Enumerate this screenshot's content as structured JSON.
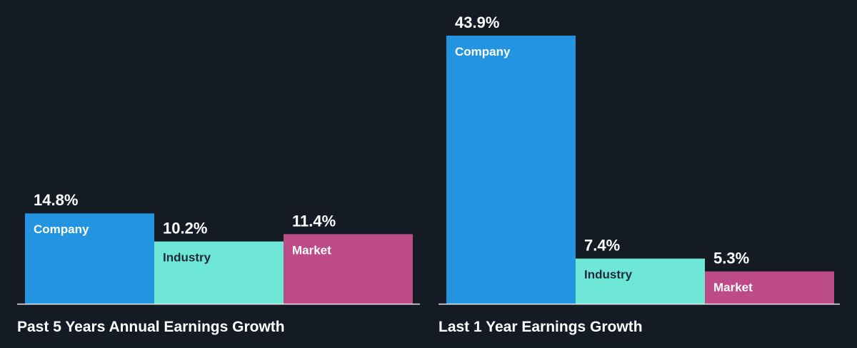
{
  "colors": {
    "background": "#151b24",
    "company": "#2394df",
    "industry": "#6ee7d6",
    "market": "#bd4b87",
    "text": "#ffffff",
    "industry_label": "#1e293b",
    "axis": "#e8eaee"
  },
  "chart_data": [
    {
      "type": "bar",
      "title": "Past 5 Years Annual Earnings Growth",
      "categories": [
        "Company",
        "Industry",
        "Market"
      ],
      "values": [
        14.8,
        10.2,
        11.4
      ],
      "value_labels": [
        "14.8%",
        "10.2%",
        "11.4%"
      ],
      "unit": "%",
      "ylim": [
        0,
        46
      ],
      "grid": false,
      "legend": "none"
    },
    {
      "type": "bar",
      "title": "Last 1 Year Earnings Growth",
      "categories": [
        "Company",
        "Industry",
        "Market"
      ],
      "values": [
        43.9,
        7.4,
        5.3
      ],
      "value_labels": [
        "43.9%",
        "7.4%",
        "5.3%"
      ],
      "unit": "%",
      "ylim": [
        0,
        46
      ],
      "grid": false,
      "legend": "none"
    }
  ]
}
